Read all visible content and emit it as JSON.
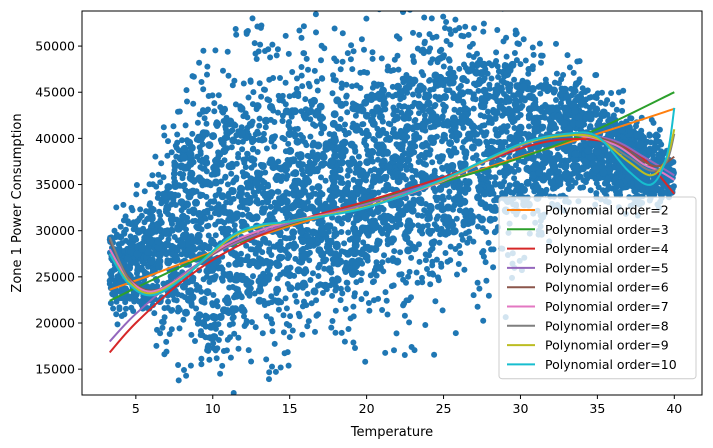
{
  "chart_data": {
    "type": "scatter",
    "title": "",
    "xlabel": "Temperature",
    "ylabel": "Zone 1 Power Consumption",
    "xlim": [
      1.5,
      41.8
    ],
    "ylim": [
      12200,
      53800
    ],
    "xticks": [
      5,
      10,
      15,
      20,
      25,
      30,
      35,
      40
    ],
    "yticks": [
      15000,
      20000,
      25000,
      30000,
      35000,
      40000,
      45000,
      50000
    ],
    "grid": false,
    "legend_position": "lower-right",
    "scatter_color": "#1f77b4",
    "scatter_envelope": {
      "x": [
        3.3,
        5,
        7,
        8,
        9,
        10,
        12,
        14,
        16,
        18,
        20,
        22,
        24,
        26,
        27,
        28,
        30,
        32,
        34,
        36,
        37,
        38,
        39,
        40
      ],
      "upper": [
        29500,
        31500,
        37000,
        41500,
        43500,
        44500,
        46500,
        46500,
        46500,
        47000,
        47000,
        48500,
        50000,
        51000,
        52000,
        51500,
        49500,
        47500,
        45500,
        43000,
        42000,
        41000,
        39500,
        37000
      ],
      "lower": [
        22500,
        21500,
        20000,
        19000,
        18000,
        15000,
        18000,
        19500,
        20500,
        21500,
        22500,
        24000,
        25500,
        27000,
        27500,
        28000,
        30000,
        33000,
        35500,
        34500,
        33500,
        33000,
        33500,
        34000
      ]
    },
    "series": [
      {
        "name": "Polynomial order=2",
        "color": "#ff7f0e",
        "x": [
          3.3,
          6,
          10,
          15,
          20,
          25,
          30,
          35,
          40
        ],
        "values": [
          23600,
          25200,
          27700,
          30500,
          32900,
          35300,
          38000,
          40500,
          43200
        ]
      },
      {
        "name": "Polynomial order=3",
        "color": "#2ca02c",
        "x": [
          3.3,
          6,
          10,
          15,
          20,
          25,
          30,
          35,
          40
        ],
        "values": [
          22400,
          24600,
          27600,
          30700,
          33100,
          35300,
          37900,
          41000,
          45000
        ]
      },
      {
        "name": "Polynomial order=4",
        "color": "#d62728",
        "x": [
          3.3,
          5,
          8,
          11,
          15,
          20,
          25,
          30,
          33,
          36,
          38,
          40
        ],
        "values": [
          16800,
          20000,
          24500,
          27800,
          30800,
          33200,
          35800,
          38900,
          39900,
          39500,
          37800,
          34000
        ]
      },
      {
        "name": "Polynomial order=5",
        "color": "#9467bd",
        "x": [
          3.3,
          5,
          8,
          11,
          15,
          20,
          25,
          30,
          33,
          36,
          38,
          40
        ],
        "values": [
          18000,
          21000,
          25200,
          28300,
          30800,
          32900,
          35600,
          39200,
          40500,
          39800,
          38000,
          36000
        ]
      },
      {
        "name": "Polynomial order=6",
        "color": "#8c564b",
        "x": [
          3.3,
          4.5,
          6,
          8,
          11,
          15,
          20,
          25,
          30,
          33,
          36,
          38,
          39,
          40
        ],
        "values": [
          29000,
          25000,
          23500,
          25000,
          28500,
          31000,
          32600,
          35400,
          39300,
          40500,
          39600,
          37500,
          37000,
          38000
        ]
      },
      {
        "name": "Polynomial order=7",
        "color": "#e377c2",
        "x": [
          3.3,
          4.5,
          6,
          8,
          11,
          15,
          20,
          25,
          30,
          33,
          36,
          38,
          39,
          40
        ],
        "values": [
          28000,
          24800,
          23400,
          25000,
          28600,
          31000,
          32600,
          35400,
          39300,
          40400,
          39400,
          37200,
          36500,
          35500
        ]
      },
      {
        "name": "Polynomial order=8",
        "color": "#7f7f7f",
        "x": [
          3.3,
          4.5,
          6,
          8,
          11,
          13,
          15,
          20,
          25,
          30,
          33,
          35,
          37,
          38.5,
          39.5,
          40
        ],
        "values": [
          29300,
          24800,
          23000,
          24800,
          29000,
          30500,
          31000,
          32600,
          35500,
          39300,
          40400,
          40000,
          38000,
          36500,
          37500,
          40500
        ]
      },
      {
        "name": "Polynomial order=9",
        "color": "#bcbd22",
        "x": [
          3.3,
          4.5,
          6,
          8,
          11,
          13,
          15,
          20,
          25,
          30,
          33,
          35,
          37,
          38.5,
          39.5,
          40
        ],
        "values": [
          27500,
          24500,
          23200,
          24900,
          29000,
          30400,
          31000,
          32600,
          35500,
          39300,
          40300,
          40000,
          37500,
          36000,
          37800,
          41000
        ]
      },
      {
        "name": "Polynomial order=10",
        "color": "#17becf",
        "x": [
          3.3,
          4.5,
          6,
          8,
          11,
          13,
          15,
          20,
          25,
          30,
          33,
          35,
          37,
          38.5,
          39.5,
          40
        ],
        "values": [
          27500,
          24300,
          23000,
          24800,
          29200,
          30600,
          31000,
          32500,
          35600,
          39400,
          40500,
          40200,
          36500,
          35000,
          38000,
          43300
        ]
      }
    ]
  }
}
